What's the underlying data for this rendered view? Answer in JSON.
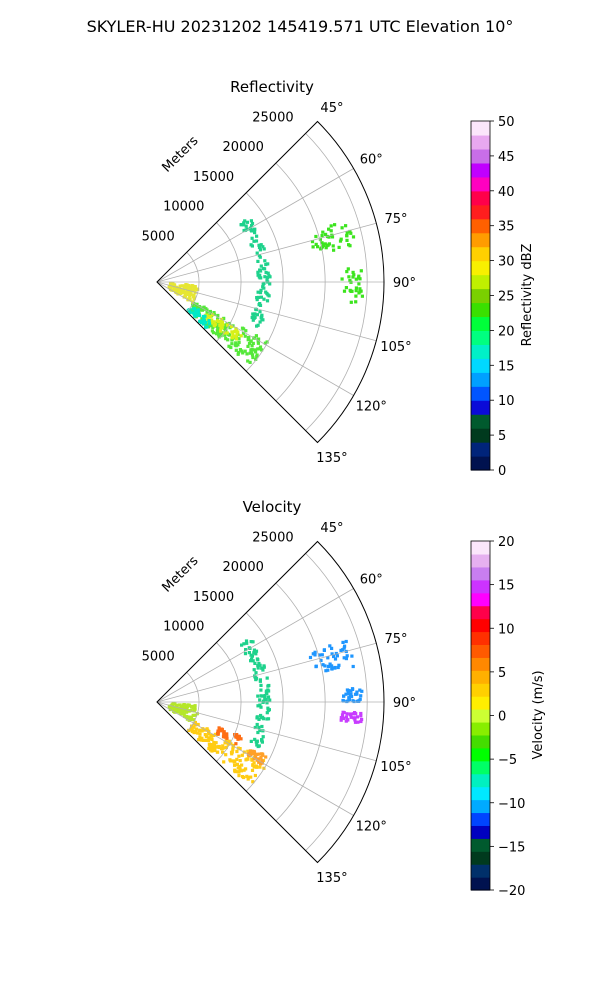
{
  "figure": {
    "title": "SKYLER-HU  20231202  145419.571 UTC Elevation 10°"
  },
  "chart_data": [
    {
      "type": "heatmap",
      "subtype": "polar-sector (PPI radar scan)",
      "title": "Reflectivity",
      "radial_label": "Meters",
      "radial_ticks": [
        "5000",
        "10000",
        "15000",
        "20000",
        "25000"
      ],
      "radial_tick_values": [
        5000,
        10000,
        15000,
        20000,
        25000
      ],
      "radial_max": 27000,
      "angular_ticks": [
        "45°",
        "60°",
        "75°",
        "90°",
        "105°",
        "120°",
        "135°"
      ],
      "angular_tick_values": [
        45,
        60,
        75,
        90,
        105,
        120,
        135
      ],
      "angle_range": [
        45,
        135
      ],
      "grid": true,
      "colorbar": {
        "label": "Reflectivity dBZ",
        "min": 0,
        "max": 50,
        "ticks": [
          "0",
          "5",
          "10",
          "15",
          "20",
          "25",
          "30",
          "35",
          "40",
          "45",
          "50"
        ],
        "tick_values": [
          0,
          5,
          10,
          15,
          20,
          25,
          30,
          35,
          40,
          45,
          50
        ],
        "colors": [
          "#00124f",
          "#00247a",
          "#003a1e",
          "#005a2e",
          "#0b0bd8",
          "#0055ff",
          "#00a0ff",
          "#00d8ff",
          "#00f0c8",
          "#00ff80",
          "#00ff3a",
          "#3ae000",
          "#7ad000",
          "#c0f000",
          "#f8f000",
          "#ffd000",
          "#ff9c00",
          "#ff6000",
          "#ff1e1e",
          "#ff004a",
          "#ff00c0",
          "#c000ff",
          "#c86ee8",
          "#e8a8f0",
          "#fbe6fb"
        ]
      },
      "echo_regions": [
        {
          "name": "northeast cluster",
          "az": [
            72,
            80
          ],
          "range": [
            19000,
            24000
          ],
          "value_range": [
            15,
            22
          ],
          "color": "#3ce41e"
        },
        {
          "name": "east cluster",
          "az": [
            86,
            96
          ],
          "range": [
            22000,
            24500
          ],
          "value_range": [
            15,
            22
          ],
          "color": "#3ce41e"
        },
        {
          "name": "southwest band",
          "az": [
            118,
            132
          ],
          "range": [
            5000,
            15000
          ],
          "value_range": [
            12,
            25
          ],
          "color": "#55e83a"
        },
        {
          "name": "southwest core",
          "az": [
            120,
            128
          ],
          "range": [
            7000,
            12000
          ],
          "value_range": [
            22,
            27
          ],
          "color": "#d8f018"
        },
        {
          "name": "southwest leading edge",
          "az": [
            124,
            133
          ],
          "range": [
            5000,
            8000
          ],
          "value_range": [
            10,
            15
          ],
          "color": "#00e8c8"
        },
        {
          "name": "ring artifact",
          "az": [
            55,
            115
          ],
          "range": [
            12000,
            13500
          ],
          "value_range": [
            12,
            18
          ],
          "color": "#1ed28c"
        },
        {
          "name": "near-field speckle",
          "az": [
            95,
            120
          ],
          "range": [
            1500,
            5000
          ],
          "value_range": [
            20,
            28
          ],
          "color": "#e6e632"
        }
      ]
    },
    {
      "type": "heatmap",
      "subtype": "polar-sector (PPI radar scan)",
      "title": "Velocity",
      "radial_label": "Meters",
      "radial_ticks": [
        "5000",
        "10000",
        "15000",
        "20000",
        "25000"
      ],
      "radial_tick_values": [
        5000,
        10000,
        15000,
        20000,
        25000
      ],
      "radial_max": 27000,
      "angular_ticks": [
        "45°",
        "60°",
        "75°",
        "90°",
        "105°",
        "120°",
        "135°"
      ],
      "angular_tick_values": [
        45,
        60,
        75,
        90,
        105,
        120,
        135
      ],
      "angle_range": [
        45,
        135
      ],
      "grid": true,
      "colorbar": {
        "label": "Velocity (m/s)",
        "min": -20,
        "max": 20,
        "ticks": [
          "−20",
          "−15",
          "−10",
          "−5",
          "0",
          "5",
          "10",
          "15",
          "20"
        ],
        "tick_values": [
          -20,
          -15,
          -10,
          -5,
          0,
          5,
          10,
          15,
          20
        ],
        "colors": [
          "#00124f",
          "#00306a",
          "#003a1e",
          "#005a2e",
          "#0000c0",
          "#0044ff",
          "#00aaff",
          "#00e8ff",
          "#00f0c0",
          "#00ff66",
          "#00ff00",
          "#44dd00",
          "#88ee00",
          "#ccff33",
          "#ffee00",
          "#ffd000",
          "#ffb000",
          "#ff8800",
          "#ff5a00",
          "#ff3000",
          "#ff0000",
          "#ff004a",
          "#ff00ff",
          "#cc33ff",
          "#c87ef0",
          "#e6b0f0",
          "#fbe6fb"
        ]
      },
      "echo_regions": [
        {
          "name": "northeast cluster",
          "az": [
            72,
            80
          ],
          "range": [
            19000,
            24000
          ],
          "value_range": [
            -14,
            -11
          ],
          "color": "#1e96ff"
        },
        {
          "name": "east cluster",
          "az": [
            86,
            90
          ],
          "range": [
            22000,
            24500
          ],
          "value_range": [
            -14,
            -11
          ],
          "color": "#1e96ff"
        },
        {
          "name": "east cluster purple",
          "az": [
            93,
            96
          ],
          "range": [
            22000,
            24500
          ],
          "value_range": [
            15,
            18
          ],
          "color": "#c83cff"
        },
        {
          "name": "southwest band",
          "az": [
            118,
            132
          ],
          "range": [
            5000,
            15000
          ],
          "value_range": [
            1,
            3
          ],
          "color": "#ffcc14"
        },
        {
          "name": "southwest inner edge",
          "az": [
            112,
            118
          ],
          "range": [
            8000,
            11000
          ],
          "value_range": [
            5,
            7
          ],
          "color": "#ff6e14"
        },
        {
          "name": "southwest outer patch",
          "az": [
            116,
            121
          ],
          "range": [
            12500,
            14500
          ],
          "value_range": [
            3,
            5
          ],
          "color": "#ffa028"
        },
        {
          "name": "ring artifact",
          "az": [
            55,
            115
          ],
          "range": [
            12000,
            13500
          ],
          "value_range": [
            -9,
            -6
          ],
          "color": "#1ed28c"
        },
        {
          "name": "near-field speckle",
          "az": [
            95,
            120
          ],
          "range": [
            1500,
            5000
          ],
          "value_range": [
            -3,
            0
          ],
          "color": "#b4e628"
        }
      ]
    }
  ]
}
